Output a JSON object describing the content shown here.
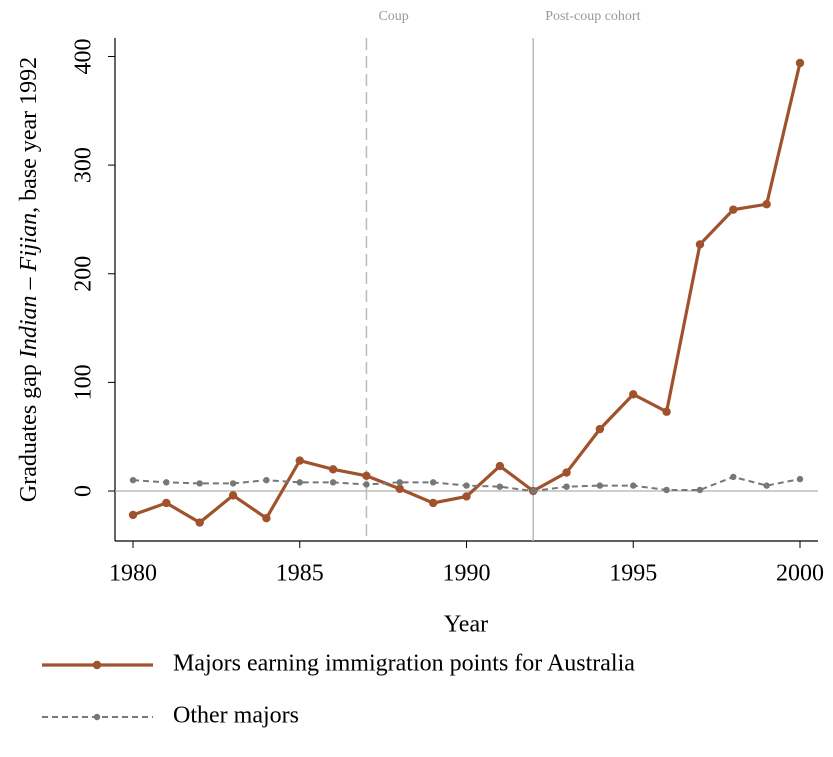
{
  "chart_data": {
    "type": "line",
    "ylabel": [
      {
        "text": "Graduates gap "
      },
      {
        "text": "Indian",
        "italic": true
      },
      {
        "text": " – "
      },
      {
        "text": "Fijian",
        "italic": true
      },
      {
        "text": ", base year 1992"
      }
    ],
    "xlabel": "Year",
    "x": [
      1980,
      1981,
      1982,
      1983,
      1984,
      1985,
      1986,
      1987,
      1988,
      1989,
      1990,
      1991,
      1992,
      1993,
      1994,
      1995,
      1996,
      1997,
      1998,
      1999,
      2000
    ],
    "series": [
      {
        "name": "Majors earning immigration points for Australia",
        "color": "#a0522d",
        "dash": false,
        "values": [
          -22,
          -11,
          -29,
          -4,
          -25,
          28,
          20,
          14,
          2,
          -11,
          -5,
          23,
          0,
          17,
          57,
          89,
          73,
          227,
          259,
          264,
          394
        ]
      },
      {
        "name": "Other majors",
        "color": "#777777",
        "dash": true,
        "values": [
          10,
          8,
          7,
          7,
          10,
          8,
          8,
          6,
          8,
          8,
          5,
          4,
          0,
          4,
          5,
          5,
          1,
          1,
          13,
          5,
          11
        ]
      }
    ],
    "xlim": [
      1979.46,
      2000.54
    ],
    "ylim": [
      -46,
      417
    ],
    "xticks": [
      1980,
      1985,
      1990,
      1995,
      2000
    ],
    "yticks": [
      0,
      100,
      200,
      300,
      400
    ],
    "zero_line": true,
    "annotations": [
      {
        "x": 1987,
        "label": "Coup",
        "style": "dashed"
      },
      {
        "x": 1992,
        "label": "Post-coup cohort",
        "style": "solid"
      }
    ],
    "legend": "bottom"
  }
}
